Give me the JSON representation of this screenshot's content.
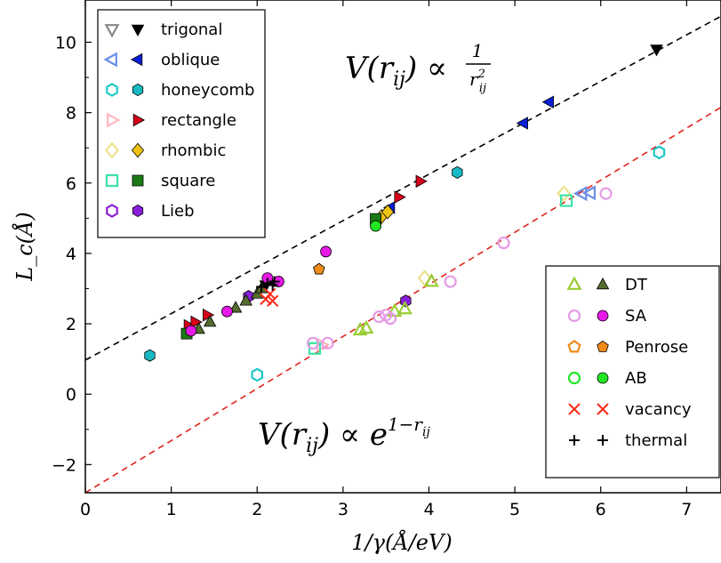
{
  "chart_data": {
    "type": "scatter",
    "xlabel": "1/γ(Å/eV)",
    "ylabel": "L_c(Å)",
    "xlim": [
      0,
      7.4
    ],
    "ylim": [
      -2.8,
      11.2
    ],
    "xticks": [
      "0",
      "1",
      "2",
      "3",
      "4",
      "5",
      "6",
      "7"
    ],
    "yticks": [
      "−2",
      "0",
      "2",
      "4",
      "6",
      "8",
      "10"
    ],
    "grid": false,
    "fit_lines": [
      {
        "label": "V(r_ij) ∝ 1/r_ij²",
        "slope": 1.32,
        "intercept": 0.97,
        "color": "#000000"
      },
      {
        "label": "V(r_ij) ∝ e^(1−r_ij)",
        "slope": 1.48,
        "intercept": -2.8,
        "color": "#e0241b"
      }
    ],
    "legend_upper_left": [
      {
        "name": "trigonal",
        "marker": "tri-down",
        "color_open": "#888888",
        "color_filled": "#000000"
      },
      {
        "name": "oblique",
        "marker": "tri-left",
        "color_open": "#6b8fe6",
        "color_filled": "#0a1fd6"
      },
      {
        "name": "honeycomb",
        "marker": "hexagon",
        "color_open": "#1ec8c8",
        "color_filled": "#18b9c3"
      },
      {
        "name": "rectangle",
        "marker": "tri-right",
        "color_open": "#ffb6c1",
        "color_filled": "#d9001b"
      },
      {
        "name": "rhombic",
        "marker": "diamond",
        "color_open": "#ece08e",
        "color_filled": "#f0c414"
      },
      {
        "name": "square",
        "marker": "square",
        "color_open": "#3be3a6",
        "color_filled": "#1c7a16"
      },
      {
        "name": "Lieb",
        "marker": "hexagon",
        "color_open": "#8a1fd9",
        "color_filled": "#8a1fd9"
      }
    ],
    "legend_lower_right": [
      {
        "name": "DT",
        "marker": "tri-up",
        "color_open": "#9acd32",
        "color_filled": "#556b2f"
      },
      {
        "name": "SA",
        "marker": "circle",
        "color_open": "#e59be6",
        "color_filled": "#e619e6"
      },
      {
        "name": "Penrose",
        "marker": "pentagon",
        "color_open": "#f08a1a",
        "color_filled": "#f08a1a"
      },
      {
        "name": "AB",
        "marker": "circle",
        "color_open": "#22e622",
        "color_filled": "#22e622"
      },
      {
        "name": "vacancy",
        "marker": "x",
        "color_open": "#ff2a1a",
        "color_filled": "#ff2a1a"
      },
      {
        "name": "thermal",
        "marker": "plus",
        "color_open": "#000000",
        "color_filled": "#000000"
      }
    ],
    "series": [
      {
        "name": "trigonal",
        "marker": "tri-down",
        "fill": "#000000",
        "points": [
          [
            2.1,
            3.1
          ],
          [
            6.65,
            9.8
          ]
        ]
      },
      {
        "name": "oblique",
        "marker": "tri-left",
        "fill": "#0a1fd6",
        "points": [
          [
            3.55,
            5.3
          ],
          [
            5.1,
            7.7
          ],
          [
            5.4,
            8.3
          ]
        ]
      },
      {
        "name": "oblique",
        "marker": "tri-left",
        "fill": "none",
        "stroke": "#6b8fe6",
        "points": [
          [
            5.78,
            5.7
          ],
          [
            5.88,
            5.72
          ]
        ]
      },
      {
        "name": "honeycomb",
        "marker": "hexagon",
        "fill": "#18b9c3",
        "points": [
          [
            0.75,
            1.1
          ],
          [
            4.33,
            6.3
          ]
        ]
      },
      {
        "name": "honeycomb",
        "marker": "hexagon",
        "fill": "none",
        "stroke": "#1ec8c8",
        "points": [
          [
            2.0,
            0.55
          ],
          [
            6.68,
            6.87
          ]
        ]
      },
      {
        "name": "rectangle",
        "marker": "tri-right",
        "fill": "#d9001b",
        "points": [
          [
            1.2,
            1.95
          ],
          [
            1.28,
            2.05
          ],
          [
            1.42,
            2.25
          ],
          [
            3.65,
            5.6
          ],
          [
            3.9,
            6.05
          ]
        ]
      },
      {
        "name": "rectangle",
        "marker": "tri-right",
        "fill": "none",
        "stroke": "#ffb6c1",
        "points": [
          [
            2.75,
            1.4
          ]
        ]
      },
      {
        "name": "rhombic",
        "marker": "diamond",
        "fill": "#f0c414",
        "points": [
          [
            3.45,
            5.05
          ],
          [
            3.52,
            5.18
          ]
        ]
      },
      {
        "name": "rhombic",
        "marker": "diamond",
        "fill": "none",
        "stroke": "#ece08e",
        "points": [
          [
            3.95,
            3.3
          ],
          [
            5.57,
            5.7
          ]
        ]
      },
      {
        "name": "square",
        "marker": "square",
        "fill": "#1c7a16",
        "points": [
          [
            1.18,
            1.72
          ],
          [
            3.38,
            4.98
          ]
        ]
      },
      {
        "name": "square",
        "marker": "square",
        "fill": "none",
        "stroke": "#3be3a6",
        "points": [
          [
            2.67,
            1.3
          ],
          [
            5.6,
            5.5
          ]
        ]
      },
      {
        "name": "Lieb",
        "marker": "hexagon",
        "fill": "#8a1fd9",
        "points": [
          [
            1.9,
            2.78
          ],
          [
            3.73,
            2.65
          ]
        ]
      },
      {
        "name": "DT",
        "marker": "tri-up",
        "fill": "#556b2f",
        "points": [
          [
            1.32,
            1.85
          ],
          [
            1.45,
            2.05
          ],
          [
            1.75,
            2.45
          ],
          [
            1.87,
            2.65
          ],
          [
            2.0,
            2.85
          ],
          [
            2.05,
            3.0
          ]
        ]
      },
      {
        "name": "DT",
        "marker": "tri-up",
        "fill": "none",
        "stroke": "#9acd32",
        "points": [
          [
            3.2,
            1.82
          ],
          [
            3.27,
            1.87
          ],
          [
            3.6,
            2.35
          ],
          [
            3.72,
            2.42
          ],
          [
            4.03,
            3.2
          ]
        ]
      },
      {
        "name": "SA",
        "marker": "circle",
        "fill": "#e619e6",
        "points": [
          [
            1.23,
            1.8
          ],
          [
            1.65,
            2.35
          ],
          [
            2.12,
            3.3
          ],
          [
            2.25,
            3.2
          ],
          [
            2.8,
            4.05
          ]
        ]
      },
      {
        "name": "SA",
        "marker": "circle",
        "fill": "none",
        "stroke": "#e59be6",
        "points": [
          [
            2.65,
            1.45
          ],
          [
            2.82,
            1.45
          ],
          [
            3.42,
            2.2
          ],
          [
            3.5,
            2.25
          ],
          [
            3.55,
            2.15
          ],
          [
            4.25,
            3.2
          ],
          [
            4.87,
            4.3
          ],
          [
            6.06,
            5.7
          ]
        ]
      },
      {
        "name": "Penrose",
        "marker": "pentagon",
        "fill": "#f08a1a",
        "points": [
          [
            2.72,
            3.55
          ]
        ]
      },
      {
        "name": "AB",
        "marker": "circle",
        "fill": "#22e622",
        "points": [
          [
            3.38,
            4.78
          ]
        ]
      },
      {
        "name": "vacancy",
        "marker": "x",
        "fill": "#ff2a1a",
        "points": [
          [
            2.1,
            2.7
          ],
          [
            2.15,
            2.85
          ],
          [
            2.18,
            2.65
          ]
        ]
      },
      {
        "name": "thermal",
        "marker": "plus",
        "fill": "#000000",
        "points": [
          [
            2.05,
            3.05
          ],
          [
            2.12,
            3.15
          ],
          [
            2.18,
            3.1
          ],
          [
            2.2,
            3.2
          ]
        ]
      }
    ],
    "annotations": {
      "top_formula": {
        "prefix": "V(r",
        "sub": "ij",
        "mid": ") ∝ ",
        "frac_num": "1",
        "frac_den": "r",
        "frac_den_sup": "2",
        "frac_den_sub": "ij"
      },
      "bottom_formula": {
        "prefix": "V(r",
        "sub": "ij",
        "mid": ") ∝ e",
        "sup": "1−r",
        "sup_sub": "ij"
      }
    }
  }
}
